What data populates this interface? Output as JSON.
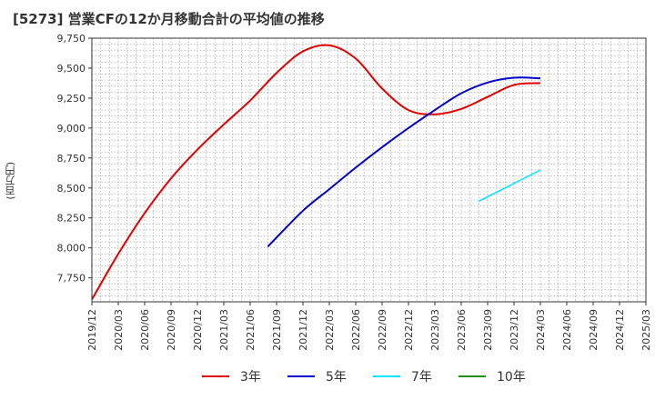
{
  "title": "[5273]  営業CFの12か月移動合計の平均値の推移",
  "y_unit_label": "(百万円)",
  "chart_data": {
    "type": "line",
    "title": "[5273]  営業CFの12か月移動合計の平均値の推移",
    "ylabel": "(百万円)",
    "xlabel": "",
    "ylim": [
      7550,
      9750
    ],
    "xlim": [
      "2019-12",
      "2025-03"
    ],
    "yticks": [
      7750,
      8000,
      8250,
      8500,
      8750,
      9000,
      9250,
      9500,
      9750
    ],
    "ytick_labels": [
      "7,750",
      "8,000",
      "8,250",
      "8,500",
      "8,750",
      "9,000",
      "9,250",
      "9,500",
      "9,750"
    ],
    "xtick_labels": [
      "2019/12",
      "2020/03",
      "2020/06",
      "2020/09",
      "2020/12",
      "2021/03",
      "2021/06",
      "2021/09",
      "2021/12",
      "2022/03",
      "2022/06",
      "2022/09",
      "2022/12",
      "2023/03",
      "2023/06",
      "2023/09",
      "2023/12",
      "2024/03",
      "2024/06",
      "2024/09",
      "2024/12",
      "2025/03"
    ],
    "grid": true,
    "legend_position": "bottom",
    "series": [
      {
        "name": "3年",
        "color": "#e00000",
        "points": [
          [
            "2019-12",
            7570
          ],
          [
            "2020-03",
            7950
          ],
          [
            "2020-06",
            8290
          ],
          [
            "2020-09",
            8580
          ],
          [
            "2020-12",
            8820
          ],
          [
            "2021-03",
            9030
          ],
          [
            "2021-06",
            9230
          ],
          [
            "2021-09",
            9460
          ],
          [
            "2021-12",
            9640
          ],
          [
            "2022-03",
            9690
          ],
          [
            "2022-06",
            9580
          ],
          [
            "2022-09",
            9330
          ],
          [
            "2022-12",
            9150
          ],
          [
            "2023-03",
            9115
          ],
          [
            "2023-06",
            9160
          ],
          [
            "2023-09",
            9260
          ],
          [
            "2023-12",
            9360
          ],
          [
            "2024-03",
            9375
          ]
        ]
      },
      {
        "name": "5年",
        "color": "#0000cc",
        "points": [
          [
            "2021-08",
            8010
          ],
          [
            "2021-12",
            8310
          ],
          [
            "2022-03",
            8490
          ],
          [
            "2022-06",
            8670
          ],
          [
            "2022-09",
            8840
          ],
          [
            "2022-12",
            9000
          ],
          [
            "2023-03",
            9150
          ],
          [
            "2023-06",
            9290
          ],
          [
            "2023-09",
            9380
          ],
          [
            "2023-12",
            9420
          ],
          [
            "2024-03",
            9415
          ]
        ]
      },
      {
        "name": "7年",
        "color": "#00e5ff",
        "points": [
          [
            "2023-08",
            8390
          ],
          [
            "2024-03",
            8650
          ]
        ]
      },
      {
        "name": "10年",
        "color": "#228b22",
        "points": []
      }
    ]
  }
}
